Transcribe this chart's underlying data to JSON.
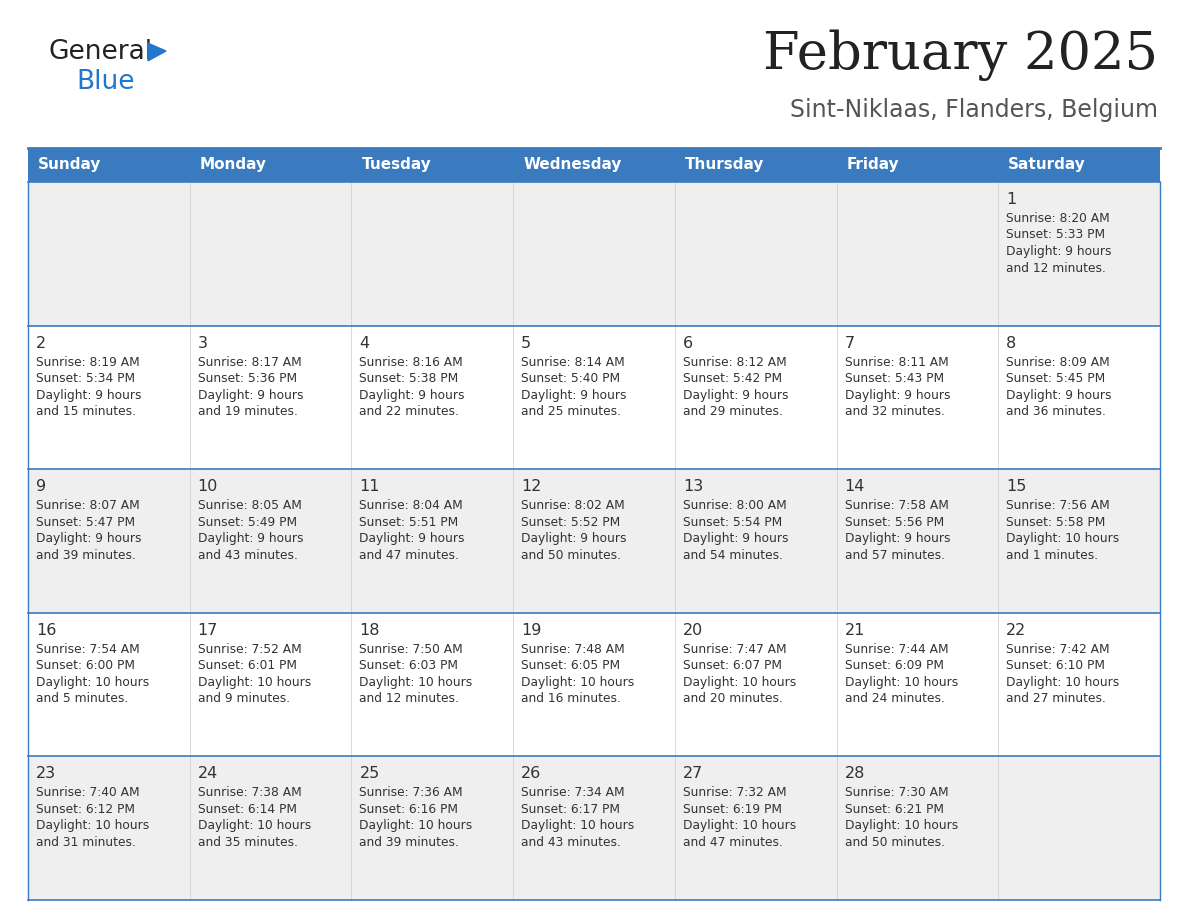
{
  "title": "February 2025",
  "subtitle": "Sint-Niklaas, Flanders, Belgium",
  "header_bg": "#3a7abf",
  "header_text": "#ffffff",
  "row_bg_gray": "#efefef",
  "row_bg_white": "#ffffff",
  "cell_border_color": "#3a7abf",
  "day_num_color": "#333333",
  "info_text_color": "#333333",
  "title_color": "#222222",
  "subtitle_color": "#555555",
  "logo_general_color": "#222222",
  "logo_blue_color": "#2277cc",
  "day_headers": [
    "Sunday",
    "Monday",
    "Tuesday",
    "Wednesday",
    "Thursday",
    "Friday",
    "Saturday"
  ],
  "calendar_data": [
    [
      null,
      null,
      null,
      null,
      null,
      null,
      {
        "day": 1,
        "sunrise": "8:20 AM",
        "sunset": "5:33 PM",
        "daylight_hours": 9,
        "daylight_minutes": 12
      }
    ],
    [
      {
        "day": 2,
        "sunrise": "8:19 AM",
        "sunset": "5:34 PM",
        "daylight_hours": 9,
        "daylight_minutes": 15
      },
      {
        "day": 3,
        "sunrise": "8:17 AM",
        "sunset": "5:36 PM",
        "daylight_hours": 9,
        "daylight_minutes": 19
      },
      {
        "day": 4,
        "sunrise": "8:16 AM",
        "sunset": "5:38 PM",
        "daylight_hours": 9,
        "daylight_minutes": 22
      },
      {
        "day": 5,
        "sunrise": "8:14 AM",
        "sunset": "5:40 PM",
        "daylight_hours": 9,
        "daylight_minutes": 25
      },
      {
        "day": 6,
        "sunrise": "8:12 AM",
        "sunset": "5:42 PM",
        "daylight_hours": 9,
        "daylight_minutes": 29
      },
      {
        "day": 7,
        "sunrise": "8:11 AM",
        "sunset": "5:43 PM",
        "daylight_hours": 9,
        "daylight_minutes": 32
      },
      {
        "day": 8,
        "sunrise": "8:09 AM",
        "sunset": "5:45 PM",
        "daylight_hours": 9,
        "daylight_minutes": 36
      }
    ],
    [
      {
        "day": 9,
        "sunrise": "8:07 AM",
        "sunset": "5:47 PM",
        "daylight_hours": 9,
        "daylight_minutes": 39
      },
      {
        "day": 10,
        "sunrise": "8:05 AM",
        "sunset": "5:49 PM",
        "daylight_hours": 9,
        "daylight_minutes": 43
      },
      {
        "day": 11,
        "sunrise": "8:04 AM",
        "sunset": "5:51 PM",
        "daylight_hours": 9,
        "daylight_minutes": 47
      },
      {
        "day": 12,
        "sunrise": "8:02 AM",
        "sunset": "5:52 PM",
        "daylight_hours": 9,
        "daylight_minutes": 50
      },
      {
        "day": 13,
        "sunrise": "8:00 AM",
        "sunset": "5:54 PM",
        "daylight_hours": 9,
        "daylight_minutes": 54
      },
      {
        "day": 14,
        "sunrise": "7:58 AM",
        "sunset": "5:56 PM",
        "daylight_hours": 9,
        "daylight_minutes": 57
      },
      {
        "day": 15,
        "sunrise": "7:56 AM",
        "sunset": "5:58 PM",
        "daylight_hours": 10,
        "daylight_minutes": 1
      }
    ],
    [
      {
        "day": 16,
        "sunrise": "7:54 AM",
        "sunset": "6:00 PM",
        "daylight_hours": 10,
        "daylight_minutes": 5
      },
      {
        "day": 17,
        "sunrise": "7:52 AM",
        "sunset": "6:01 PM",
        "daylight_hours": 10,
        "daylight_minutes": 9
      },
      {
        "day": 18,
        "sunrise": "7:50 AM",
        "sunset": "6:03 PM",
        "daylight_hours": 10,
        "daylight_minutes": 12
      },
      {
        "day": 19,
        "sunrise": "7:48 AM",
        "sunset": "6:05 PM",
        "daylight_hours": 10,
        "daylight_minutes": 16
      },
      {
        "day": 20,
        "sunrise": "7:47 AM",
        "sunset": "6:07 PM",
        "daylight_hours": 10,
        "daylight_minutes": 20
      },
      {
        "day": 21,
        "sunrise": "7:44 AM",
        "sunset": "6:09 PM",
        "daylight_hours": 10,
        "daylight_minutes": 24
      },
      {
        "day": 22,
        "sunrise": "7:42 AM",
        "sunset": "6:10 PM",
        "daylight_hours": 10,
        "daylight_minutes": 27
      }
    ],
    [
      {
        "day": 23,
        "sunrise": "7:40 AM",
        "sunset": "6:12 PM",
        "daylight_hours": 10,
        "daylight_minutes": 31
      },
      {
        "day": 24,
        "sunrise": "7:38 AM",
        "sunset": "6:14 PM",
        "daylight_hours": 10,
        "daylight_minutes": 35
      },
      {
        "day": 25,
        "sunrise": "7:36 AM",
        "sunset": "6:16 PM",
        "daylight_hours": 10,
        "daylight_minutes": 39
      },
      {
        "day": 26,
        "sunrise": "7:34 AM",
        "sunset": "6:17 PM",
        "daylight_hours": 10,
        "daylight_minutes": 43
      },
      {
        "day": 27,
        "sunrise": "7:32 AM",
        "sunset": "6:19 PM",
        "daylight_hours": 10,
        "daylight_minutes": 47
      },
      {
        "day": 28,
        "sunrise": "7:30 AM",
        "sunset": "6:21 PM",
        "daylight_hours": 10,
        "daylight_minutes": 50
      },
      null
    ]
  ]
}
